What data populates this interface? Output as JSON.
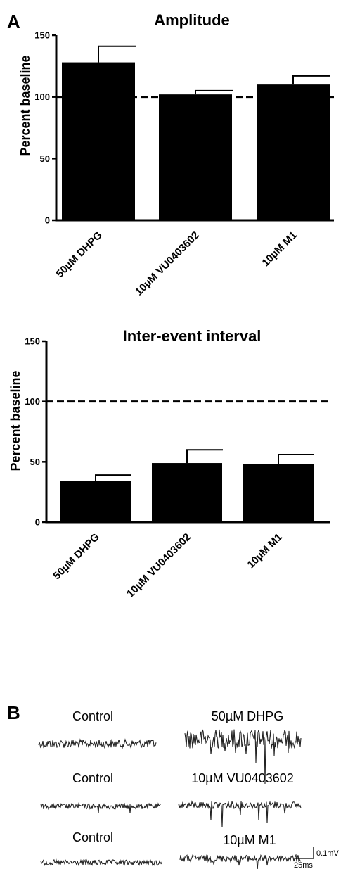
{
  "panels": {
    "a": "A",
    "b": "B"
  },
  "chart_data": [
    {
      "type": "bar",
      "title": "Amplitude",
      "ylabel": "Percent baseline",
      "categories": [
        "50µM DHPG",
        "10µM VU0403602",
        "10µM M1"
      ],
      "values": [
        128,
        102,
        110
      ],
      "errors": [
        13,
        3,
        7
      ],
      "ylim": [
        0,
        150
      ],
      "yticks": [
        "0",
        "50",
        "100",
        "150"
      ],
      "reference_line": 100,
      "bar_color": "#000000"
    },
    {
      "type": "bar",
      "title": "Inter-event interval",
      "ylabel": "Percent baseline",
      "categories": [
        "50µM DHPG",
        "10µM VU0403602",
        "10µM M1"
      ],
      "values": [
        34,
        49,
        48
      ],
      "errors": [
        5,
        11,
        8
      ],
      "ylim": [
        0,
        150
      ],
      "yticks": [
        "0",
        "50",
        "100",
        "150"
      ],
      "reference_line": 100,
      "bar_color": "#000000"
    }
  ],
  "traces": {
    "rows": [
      {
        "control": "Control",
        "drug": "50µM DHPG"
      },
      {
        "control": "Control",
        "drug": "10µM VU0403602"
      },
      {
        "control": "Control",
        "drug": "10µM M1"
      }
    ],
    "scale_v": "0.1mV",
    "scale_t": "25ms"
  }
}
